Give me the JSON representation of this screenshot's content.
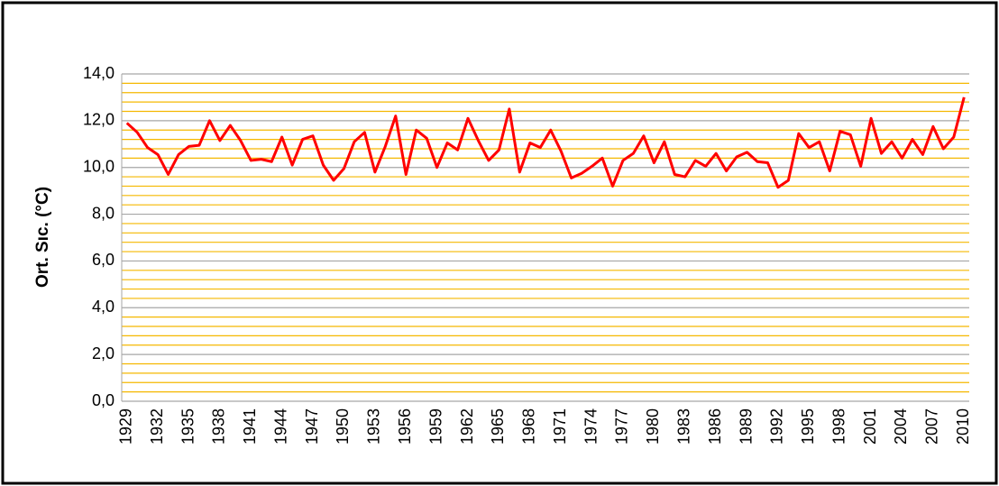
{
  "chart_data": {
    "type": "line",
    "y_label": "Ort. Sıc. (°C)",
    "categories": [
      "1929",
      null,
      null,
      "1932",
      null,
      null,
      "1935",
      null,
      null,
      "1938",
      null,
      null,
      "1941",
      null,
      null,
      "1944",
      null,
      null,
      "1947",
      null,
      null,
      "1950",
      null,
      null,
      "1953",
      null,
      null,
      "1956",
      null,
      null,
      "1959",
      null,
      null,
      "1962",
      null,
      null,
      "1965",
      null,
      null,
      "1968",
      null,
      null,
      "1971",
      null,
      null,
      "1974",
      null,
      null,
      "1977",
      null,
      null,
      "1980",
      null,
      null,
      "1983",
      null,
      null,
      "1986",
      null,
      null,
      "1989",
      null,
      null,
      "1992",
      null,
      null,
      "1995",
      null,
      null,
      "1998",
      null,
      null,
      "2001",
      null,
      null,
      "2004",
      null,
      null,
      "2007",
      null,
      null,
      "2010"
    ],
    "values": [
      11.9,
      11.5,
      10.85,
      10.55,
      9.7,
      10.55,
      10.9,
      10.95,
      12.0,
      11.15,
      11.8,
      11.15,
      10.3,
      10.35,
      10.25,
      11.3,
      10.1,
      11.2,
      11.35,
      10.1,
      9.45,
      9.95,
      11.1,
      11.5,
      9.8,
      10.9,
      12.2,
      9.7,
      11.6,
      11.25,
      10.0,
      11.05,
      10.75,
      12.1,
      11.15,
      10.3,
      10.75,
      12.5,
      9.8,
      11.05,
      10.85,
      11.6,
      10.7,
      9.55,
      9.75,
      10.05,
      10.4,
      9.2,
      10.3,
      10.6,
      11.35,
      10.2,
      11.1,
      9.7,
      9.6,
      10.3,
      10.05,
      10.6,
      9.85,
      10.45,
      10.65,
      10.25,
      10.2,
      9.15,
      9.45,
      11.45,
      10.85,
      11.1,
      9.85,
      11.55,
      11.4,
      10.05,
      12.1,
      10.6,
      11.1,
      10.4,
      11.2,
      10.55,
      11.75,
      10.8,
      11.3,
      13.0
    ],
    "color": "#ff0000",
    "ylim": [
      0,
      14
    ],
    "yticks": [
      {
        "value": 0,
        "label": "0,0"
      },
      {
        "value": 2,
        "label": "2,0"
      },
      {
        "value": 4,
        "label": "4,0"
      },
      {
        "value": 6,
        "label": "6,0"
      },
      {
        "value": 8,
        "label": "8,0"
      },
      {
        "value": 10,
        "label": "10,0"
      },
      {
        "value": 12,
        "label": "12,0"
      },
      {
        "value": 14,
        "label": "14,0"
      }
    ],
    "grid": true,
    "grid_color": "#a6a6a6",
    "minor_grid": {
      "step": 0.4,
      "color": "#f5b800"
    }
  }
}
